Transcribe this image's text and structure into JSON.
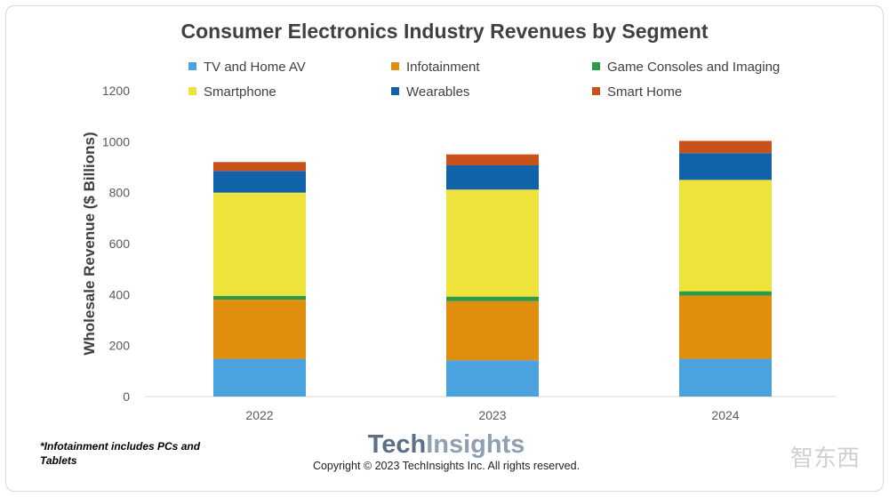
{
  "chart_data": {
    "type": "bar",
    "stacked": true,
    "title": "Consumer Electronics Industry Revenues by Segment",
    "ylabel": "Wholesale Revenue ($ Billions)",
    "xlabel": "",
    "categories": [
      "2022",
      "2023",
      "2024"
    ],
    "ylim": [
      0,
      1200
    ],
    "yticks": [
      0,
      200,
      400,
      600,
      800,
      1000,
      1200
    ],
    "grid": false,
    "legend_position": "top",
    "series": [
      {
        "name": "TV and Home AV",
        "color": "#4aa3df",
        "values": [
          148,
          142,
          148
        ]
      },
      {
        "name": "Infotainment",
        "color": "#df8e0e",
        "values": [
          232,
          232,
          248
        ]
      },
      {
        "name": "Game Consoles and Imaging",
        "color": "#2e9a47",
        "values": [
          15,
          18,
          17
        ]
      },
      {
        "name": "Smartphone",
        "color": "#ede33b",
        "values": [
          405,
          420,
          437
        ]
      },
      {
        "name": "Wearables",
        "color": "#1162a9",
        "values": [
          85,
          95,
          105
        ]
      },
      {
        "name": "Smart Home",
        "color": "#c9511b",
        "values": [
          35,
          43,
          48
        ]
      }
    ]
  },
  "legend_order": [
    0,
    1,
    2,
    3,
    4,
    5
  ],
  "footnote": {
    "line1": "*Infotainment includes PCs and",
    "line2": "Tablets"
  },
  "brand": {
    "part1": "Tech",
    "part2": "Insights",
    "color1": "#5b6f87",
    "color2": "#8fa0b2"
  },
  "copyright": "Copyright © 2023 TechInsights Inc.  All rights reserved.",
  "watermark": "智东西"
}
